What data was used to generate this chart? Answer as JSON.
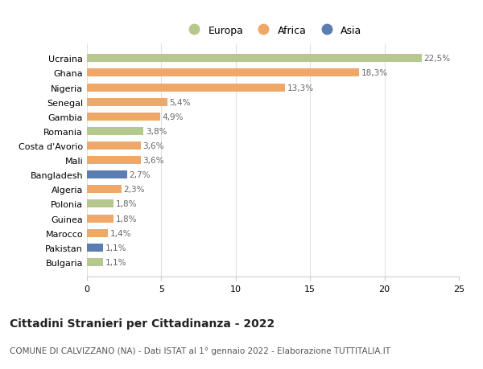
{
  "countries": [
    "Ucraina",
    "Ghana",
    "Nigeria",
    "Senegal",
    "Gambia",
    "Romania",
    "Costa d'Avorio",
    "Mali",
    "Bangladesh",
    "Algeria",
    "Polonia",
    "Guinea",
    "Marocco",
    "Pakistan",
    "Bulgaria"
  ],
  "values": [
    22.5,
    18.3,
    13.3,
    5.4,
    4.9,
    3.8,
    3.6,
    3.6,
    2.7,
    2.3,
    1.8,
    1.8,
    1.4,
    1.1,
    1.1
  ],
  "labels": [
    "22,5%",
    "18,3%",
    "13,3%",
    "5,4%",
    "4,9%",
    "3,8%",
    "3,6%",
    "3,6%",
    "2,7%",
    "2,3%",
    "1,8%",
    "1,8%",
    "1,4%",
    "1,1%",
    "1,1%"
  ],
  "continents": [
    "Europa",
    "Africa",
    "Africa",
    "Africa",
    "Africa",
    "Europa",
    "Africa",
    "Africa",
    "Asia",
    "Africa",
    "Europa",
    "Africa",
    "Africa",
    "Asia",
    "Europa"
  ],
  "colors": {
    "Europa": "#b5c98e",
    "Africa": "#f0a868",
    "Asia": "#5b7db1"
  },
  "legend_order": [
    "Europa",
    "Africa",
    "Asia"
  ],
  "xlim": [
    0,
    25
  ],
  "xticks": [
    0,
    5,
    10,
    15,
    20,
    25
  ],
  "title": "Cittadini Stranieri per Cittadinanza - 2022",
  "subtitle": "COMUNE DI CALVIZZANO (NA) - Dati ISTAT al 1° gennaio 2022 - Elaborazione TUTTITALIA.IT",
  "background_color": "#ffffff",
  "grid_color": "#e0e0e0",
  "bar_height": 0.55,
  "label_fontsize": 7.5,
  "ytick_fontsize": 8,
  "xtick_fontsize": 8,
  "title_fontsize": 10,
  "subtitle_fontsize": 7.5,
  "legend_fontsize": 9
}
